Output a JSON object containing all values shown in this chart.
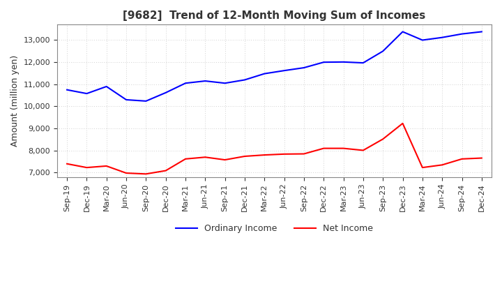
{
  "title": "[9682]  Trend of 12-Month Moving Sum of Incomes",
  "ylabel": "Amount (million yen)",
  "background_color": "#ffffff",
  "plot_bg_color": "#ffffff",
  "grid_color": "#aaaaaa",
  "x_labels": [
    "Sep-19",
    "Dec-19",
    "Mar-20",
    "Jun-20",
    "Sep-20",
    "Dec-20",
    "Mar-21",
    "Jun-21",
    "Sep-21",
    "Dec-21",
    "Mar-22",
    "Jun-22",
    "Sep-22",
    "Dec-22",
    "Mar-23",
    "Jun-23",
    "Sep-23",
    "Dec-23",
    "Mar-24",
    "Jun-24",
    "Sep-24",
    "Dec-24"
  ],
  "ordinary_income": [
    10750,
    10580,
    10900,
    10300,
    10240,
    10620,
    11050,
    11150,
    11050,
    11200,
    11480,
    11620,
    11750,
    12000,
    12010,
    11970,
    12500,
    13380,
    13000,
    13120,
    13280,
    13380
  ],
  "net_income": [
    7400,
    7230,
    7300,
    6980,
    6940,
    7090,
    7620,
    7700,
    7580,
    7740,
    7800,
    7840,
    7850,
    8100,
    8100,
    8010,
    8520,
    9230,
    7230,
    7350,
    7620,
    7660
  ],
  "ordinary_color": "#0000ff",
  "net_color": "#ff0000",
  "ylim_min": 6800,
  "ylim_max": 13700,
  "yticks": [
    7000,
    8000,
    9000,
    10000,
    11000,
    12000,
    13000
  ],
  "legend_ordinary": "Ordinary Income",
  "legend_net": "Net Income",
  "title_fontsize": 11,
  "ylabel_fontsize": 9,
  "tick_fontsize": 8
}
